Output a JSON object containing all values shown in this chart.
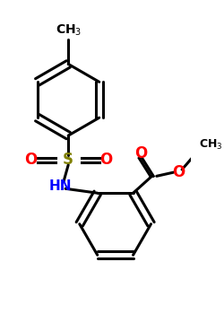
{
  "background_color": "#ffffff",
  "line_color": "#000000",
  "sulfur_color": "#808000",
  "oxygen_color": "#ff0000",
  "nitrogen_color": "#0000ff",
  "line_width": 2.2,
  "figsize": [
    2.5,
    3.5
  ],
  "dpi": 100,
  "xlim": [
    0.0,
    1.0
  ],
  "ylim": [
    0.0,
    1.4
  ]
}
